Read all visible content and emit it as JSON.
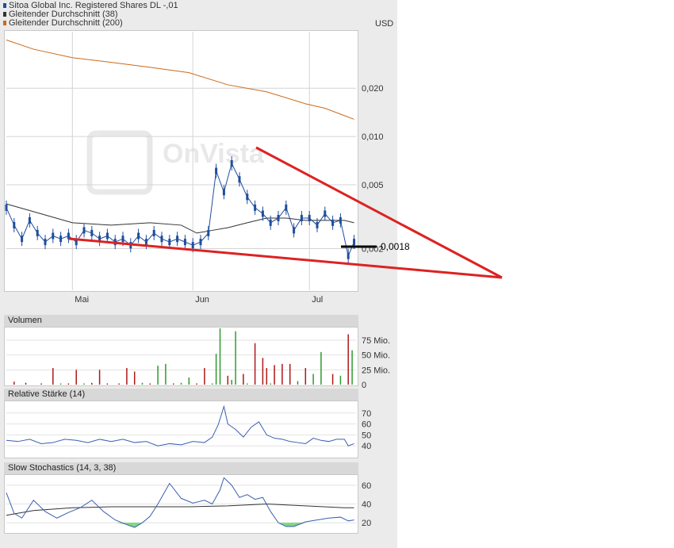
{
  "header": {
    "series_main": "Sitoa Global Inc. Registered Shares DL -,01",
    "series_ma38": "Gleitender Durchschnitt (38)",
    "series_ma200": "Gleitender Durchschnitt (200)",
    "currency": "USD",
    "colors": {
      "main": "#1f4e9c",
      "ma38": "#333333",
      "ma200": "#cc6a1a"
    }
  },
  "watermark": "OnVista",
  "panels": {
    "volume": "Volumen",
    "rsi": "Relative Stärke (14)",
    "stoch": "Slow Stochastics (14, 3, 38)"
  },
  "annotation": {
    "label": "0,0018",
    "color": "#dd2222"
  },
  "chart_data": [
    {
      "type": "line",
      "title": "Sitoa Global Inc. Registered Shares DL -,01",
      "ylabel": "USD",
      "yscale": "log",
      "ylim": [
        0.0011,
        0.045
      ],
      "y_ticks": [
        0.002,
        0.005,
        0.01,
        0.02
      ],
      "y_tick_labels": [
        "0,002",
        "0,005",
        "0,010",
        "0,020"
      ],
      "x_tick_labels": [
        "Mai",
        "Jun",
        "Jul"
      ],
      "x_tick_days": [
        30,
        61,
        91
      ],
      "x_range_days": [
        13,
        103
      ],
      "series": [
        {
          "name": "Sitoa Global Inc. Registered Shares DL -,01",
          "x": [
            13,
            15,
            17,
            19,
            21,
            23,
            25,
            27,
            29,
            31,
            33,
            35,
            37,
            39,
            41,
            43,
            45,
            47,
            49,
            51,
            53,
            55,
            57,
            59,
            61,
            63,
            65,
            67,
            69,
            71,
            73,
            75,
            77,
            79,
            81,
            83,
            85,
            87,
            89,
            91,
            93,
            95,
            97,
            99,
            101,
            102.5
          ],
          "y": [
            0.0036,
            0.0028,
            0.0023,
            0.003,
            0.0025,
            0.0022,
            0.0024,
            0.0023,
            0.0024,
            0.0022,
            0.0026,
            0.0025,
            0.0023,
            0.0024,
            0.0022,
            0.0023,
            0.0021,
            0.0024,
            0.0022,
            0.0025,
            0.0023,
            0.0022,
            0.0023,
            0.0022,
            0.0021,
            0.0022,
            0.0025,
            0.0061,
            0.0045,
            0.0068,
            0.0054,
            0.0042,
            0.0036,
            0.0033,
            0.0029,
            0.0031,
            0.0036,
            0.0026,
            0.0031,
            0.0031,
            0.0028,
            0.0033,
            0.0029,
            0.003,
            0.0018,
            0.0022
          ]
        },
        {
          "name": "Gleitender Durchschnitt (38)",
          "x": [
            13,
            20,
            30,
            40,
            50,
            58,
            62,
            66,
            70,
            75,
            80,
            85,
            90,
            95,
            100,
            102.5
          ],
          "y": [
            0.0038,
            0.0034,
            0.0029,
            0.0028,
            0.0029,
            0.0028,
            0.0025,
            0.0026,
            0.0027,
            0.0029,
            0.0031,
            0.0031,
            0.003,
            0.003,
            0.003,
            0.0029
          ]
        },
        {
          "name": "Gleitender Durchschnitt (200)",
          "x": [
            13,
            20,
            30,
            40,
            50,
            60,
            70,
            80,
            90,
            95,
            100,
            102.5
          ],
          "y": [
            0.04,
            0.035,
            0.031,
            0.029,
            0.027,
            0.025,
            0.021,
            0.019,
            0.016,
            0.015,
            0.0135,
            0.0128
          ]
        }
      ]
    },
    {
      "type": "bar",
      "title": "Volumen",
      "y_tick_labels": [
        "0",
        "25 Mio.",
        "50 Mio.",
        "75 Mio."
      ],
      "ylim": [
        0,
        95
      ],
      "unit": "Mio.",
      "x": [
        15,
        18,
        22,
        25,
        27,
        29,
        31,
        33,
        35,
        37,
        39,
        42,
        44,
        46,
        48,
        50,
        52,
        54,
        56,
        58,
        60,
        62,
        64,
        66,
        67,
        68,
        70,
        71,
        72,
        74,
        75,
        77,
        79,
        80,
        81,
        82,
        84,
        86,
        88,
        90,
        92,
        94,
        97,
        99,
        101,
        102
      ],
      "values": [
        5,
        3,
        2,
        28,
        2,
        2,
        25,
        2,
        3,
        25,
        2,
        2,
        28,
        22,
        3,
        2,
        32,
        35,
        2,
        3,
        12,
        2,
        28,
        2,
        52,
        95,
        15,
        8,
        90,
        18,
        2,
        70,
        45,
        28,
        2,
        33,
        35,
        35,
        6,
        28,
        18,
        55,
        18,
        15,
        85,
        58
      ],
      "colors": [
        "red",
        "red",
        "red",
        "red",
        "green",
        "red",
        "red",
        "green",
        "red",
        "red",
        "red",
        "red",
        "red",
        "red",
        "green",
        "red",
        "green",
        "green",
        "red",
        "green",
        "green",
        "red",
        "red",
        "green",
        "green",
        "green",
        "red",
        "green",
        "green",
        "red",
        "green",
        "red",
        "red",
        "red",
        "green",
        "red",
        "red",
        "red",
        "green",
        "red",
        "green",
        "green",
        "red",
        "green",
        "red",
        "green"
      ]
    },
    {
      "type": "line",
      "title": "Relative Stärke (14)",
      "ylim": [
        30,
        80
      ],
      "y_ticks": [
        40,
        50,
        60,
        70
      ],
      "x": [
        13,
        16,
        19,
        22,
        25,
        28,
        31,
        34,
        37,
        40,
        43,
        46,
        49,
        52,
        55,
        58,
        61,
        64,
        66,
        67.5,
        69,
        70,
        72,
        74,
        76,
        78,
        80,
        82,
        84,
        86,
        88,
        90,
        92,
        94,
        96,
        98,
        100,
        101,
        102.5
      ],
      "y": [
        45,
        44,
        46,
        42,
        43,
        46,
        45,
        43,
        46,
        44,
        46,
        43,
        44,
        40,
        42,
        41,
        44,
        43,
        48,
        59,
        76,
        60,
        55,
        48,
        57,
        62,
        50,
        47,
        46,
        44,
        43,
        42,
        47,
        45,
        44,
        46,
        46,
        40,
        42
      ]
    },
    {
      "type": "line",
      "title": "Slow Stochastics (14, 3, 38)",
      "ylim": [
        10,
        70
      ],
      "y_ticks": [
        20,
        40,
        60
      ],
      "series": [
        {
          "name": "%K",
          "x": [
            13,
            15,
            17,
            20,
            23,
            26,
            29,
            32,
            35,
            38,
            41,
            44,
            46,
            48,
            50,
            52,
            55,
            58,
            61,
            64,
            66,
            68,
            69,
            71,
            73,
            75,
            77,
            79,
            81,
            83,
            85,
            87,
            90,
            93,
            96,
            99,
            101,
            102.5
          ],
          "y": [
            52,
            30,
            25,
            44,
            32,
            25,
            31,
            36,
            44,
            32,
            23,
            18,
            15,
            20,
            27,
            40,
            62,
            46,
            41,
            44,
            40,
            55,
            68,
            60,
            47,
            50,
            45,
            47,
            32,
            20,
            16,
            16,
            21,
            23,
            25,
            26,
            22,
            23
          ]
        },
        {
          "name": "%D",
          "x": [
            13,
            20,
            30,
            40,
            50,
            60,
            70,
            80,
            90,
            100,
            102.5
          ],
          "y": [
            28,
            33,
            36,
            37,
            37,
            37,
            38,
            40,
            38,
            36,
            36
          ]
        }
      ]
    }
  ]
}
